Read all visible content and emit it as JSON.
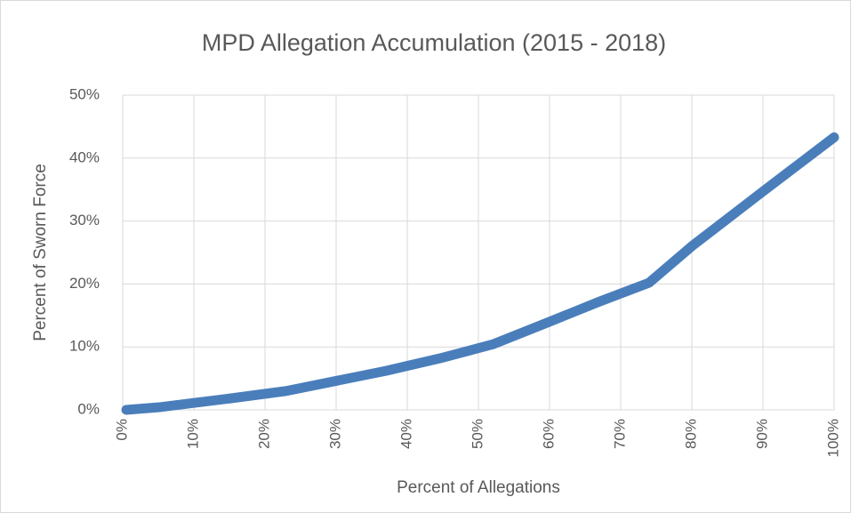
{
  "chart_data": {
    "type": "line",
    "title": "MPD Allegation Accumulation (2015 - 2018)",
    "x_label": "Percent of Allegations",
    "y_label": "Percent of Sworn Force",
    "series": [
      {
        "color": "#4a7ebb",
        "x": [
          0.5,
          5,
          10,
          15,
          23,
          30,
          37,
          45,
          52,
          60,
          67,
          74,
          80,
          90,
          100
        ],
        "values": [
          0,
          0.4,
          1.1,
          1.8,
          3.0,
          4.6,
          6.2,
          8.3,
          10.4,
          14.0,
          17.2,
          20.2,
          26.0,
          34.7,
          43.3
        ]
      }
    ],
    "xlim": [
      0,
      100
    ],
    "ylim": [
      0,
      50
    ],
    "xticks": [
      {
        "value": 0,
        "label": "0%"
      },
      {
        "value": 10,
        "label": "10%"
      },
      {
        "value": 20,
        "label": "20%"
      },
      {
        "value": 30,
        "label": "30%"
      },
      {
        "value": 40,
        "label": "40%"
      },
      {
        "value": 50,
        "label": "50%"
      },
      {
        "value": 60,
        "label": "60%"
      },
      {
        "value": 70,
        "label": "70%"
      },
      {
        "value": 80,
        "label": "80%"
      },
      {
        "value": 90,
        "label": "90%"
      },
      {
        "value": 100,
        "label": "100%"
      }
    ],
    "yticks": [
      {
        "value": 0,
        "label": "0%"
      },
      {
        "value": 10,
        "label": "10%"
      },
      {
        "value": 20,
        "label": "20%"
      },
      {
        "value": 30,
        "label": "30%"
      },
      {
        "value": 40,
        "label": "40%"
      },
      {
        "value": 50,
        "label": "50%"
      }
    ],
    "grid": true
  }
}
